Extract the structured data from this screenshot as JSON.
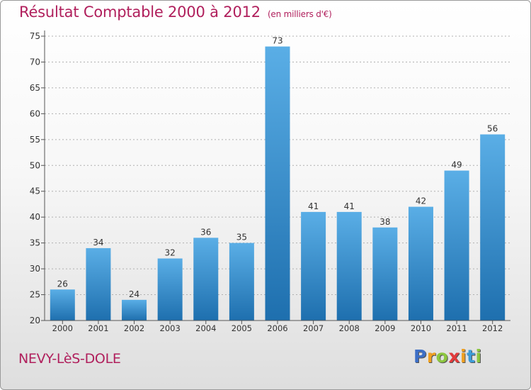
{
  "title": "Résultat Comptable 2000 à 2012",
  "subtitle": "(en milliers d'€)",
  "location": "NEVY-LèS-DOLE",
  "logo_text": "Proxiti",
  "colors": {
    "title": "#b01f5c",
    "bar_top": "#5aaee6",
    "bar_bottom": "#1e6fae",
    "axis": "#555555",
    "grid": "#aaaaaa"
  },
  "chart_data": {
    "type": "bar",
    "title": "Résultat Comptable 2000 à 2012",
    "xlabel": "",
    "ylabel": "",
    "ylim": [
      20,
      75
    ],
    "yticks": [
      20,
      25,
      30,
      35,
      40,
      45,
      50,
      55,
      60,
      65,
      70,
      75
    ],
    "categories": [
      "2000",
      "2001",
      "2002",
      "2003",
      "2004",
      "2005",
      "2006",
      "2007",
      "2008",
      "2009",
      "2010",
      "2011",
      "2012"
    ],
    "values": [
      26,
      34,
      24,
      32,
      36,
      35,
      73,
      41,
      41,
      38,
      42,
      49,
      56
    ]
  }
}
